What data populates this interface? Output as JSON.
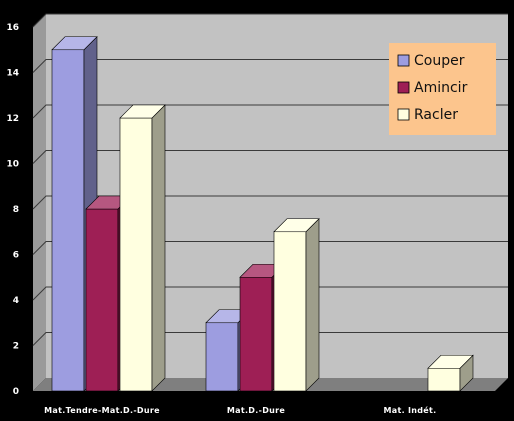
{
  "chart_data": {
    "type": "bar",
    "title": "",
    "xlabel": "",
    "ylabel": "",
    "categories": [
      "Mat.Tendre-Mat.D.-Dure",
      "Mat.D.-Dure",
      "Mat. Indét."
    ],
    "series": [
      {
        "name": "Couper",
        "values": [
          15,
          3,
          0
        ]
      },
      {
        "name": "Amincir",
        "values": [
          8,
          5,
          0
        ]
      },
      {
        "name": "Racler",
        "values": [
          12,
          7,
          1
        ]
      }
    ],
    "ylim": [
      0,
      16
    ],
    "yticks": [
      0,
      2,
      4,
      6,
      8,
      10,
      12,
      14,
      16
    ],
    "grid": true,
    "legend_position": "top-right",
    "colors": {
      "Couper": "#9d9de0",
      "Amincir": "#9e1f55",
      "Racler": "#ffffe0",
      "wall": "#c2c2c2",
      "floor": "#7f7f7f",
      "legend_bg": "#fcc58d",
      "background": "#000000"
    }
  }
}
